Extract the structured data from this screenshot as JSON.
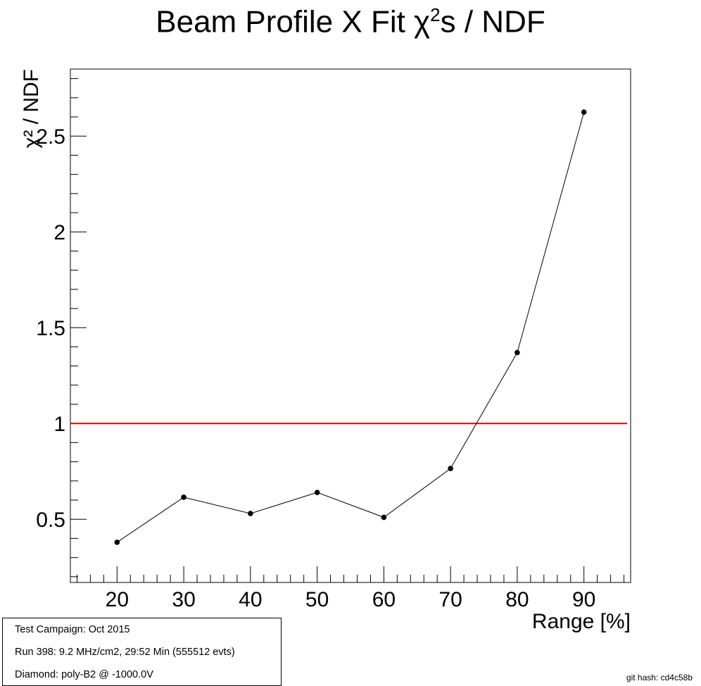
{
  "title": {
    "prefix": "Beam Profile X Fit χ",
    "sup": "2",
    "suffix": "s / NDF"
  },
  "chart_data": {
    "type": "line",
    "title": "Beam Profile X Fit χ²s / NDF",
    "xlabel": "Range [%]",
    "ylabel": "χ² / NDF",
    "xlim": [
      13,
      97
    ],
    "ylim": [
      0.17,
      2.85
    ],
    "x_ticks": [
      20,
      30,
      40,
      50,
      60,
      70,
      80,
      90
    ],
    "y_ticks": [
      0.5,
      1,
      1.5,
      2,
      2.5
    ],
    "y_tick_labels": [
      "0.5",
      "1",
      "1.5",
      "2",
      "2.5"
    ],
    "series": [
      {
        "color": "#000000",
        "x": [
          20,
          30,
          40,
          50,
          60,
          70,
          80,
          90
        ],
        "y": [
          0.38,
          0.615,
          0.53,
          0.64,
          0.51,
          0.765,
          1.37,
          2.625
        ]
      }
    ],
    "reference_line": {
      "y": 1,
      "color": "#e00000"
    },
    "grid": false
  },
  "info": {
    "campaign": "Test Campaign: Oct 2015",
    "run": "Run 398: 9.2 MHz/cm2, 29:52 Min (555512 evts)",
    "diamond": "Diamond: poly-B2 @ -1000.0V"
  },
  "git_hash": "git hash: cd4c58b"
}
